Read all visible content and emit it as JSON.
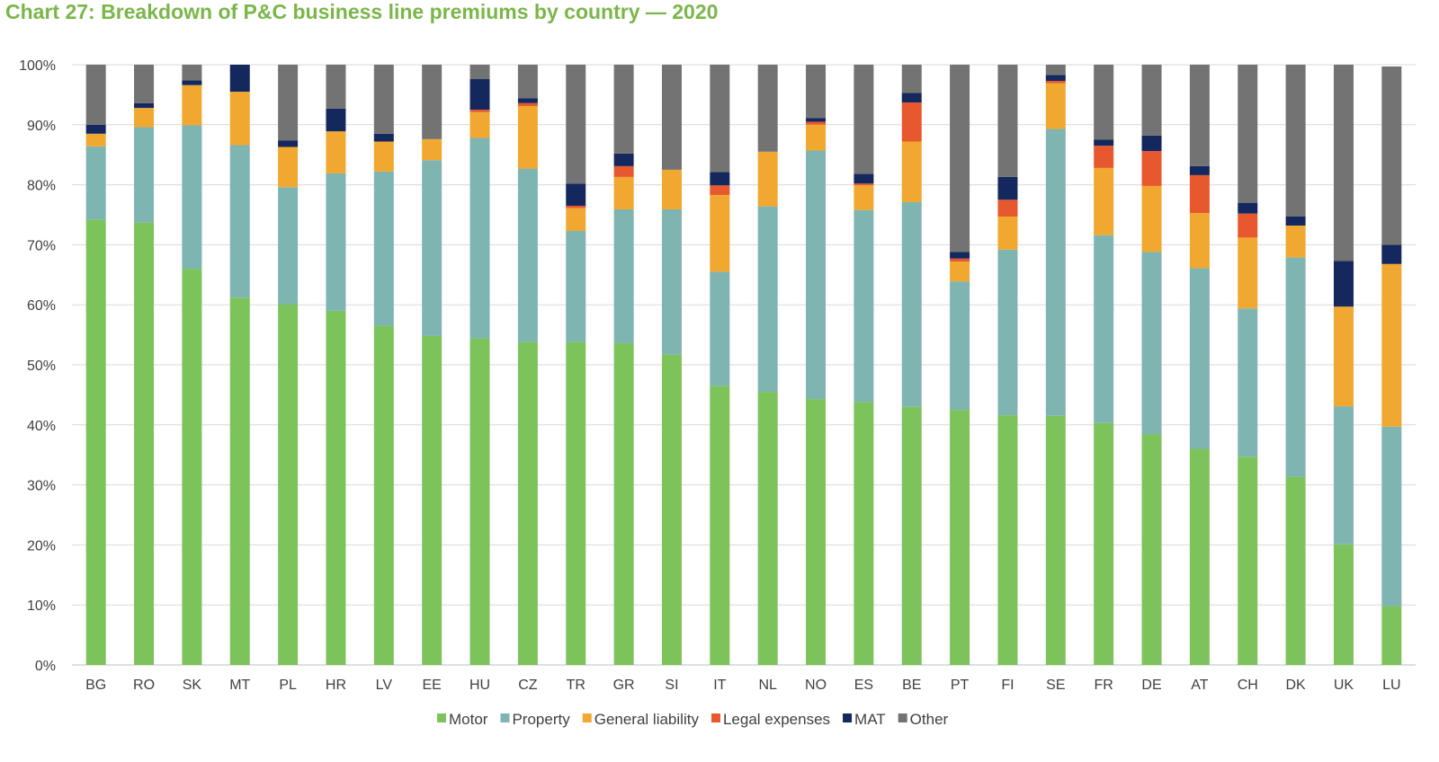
{
  "chart_data": {
    "type": "bar",
    "stacked": true,
    "title": "Chart 27: Breakdown of P&C business line premiums by country — 2020",
    "xlabel": "",
    "ylabel": "",
    "ylim": [
      0,
      100
    ],
    "yticks": [
      "0%",
      "10%",
      "20%",
      "30%",
      "40%",
      "50%",
      "60%",
      "70%",
      "80%",
      "90%",
      "100%"
    ],
    "grid": true,
    "legend_position": "bottom",
    "categories": [
      "BG",
      "RO",
      "SK",
      "MT",
      "PL",
      "HR",
      "LV",
      "EE",
      "HU",
      "CZ",
      "TR",
      "GR",
      "SI",
      "IT",
      "NL",
      "NO",
      "ES",
      "BE",
      "PT",
      "FI",
      "SE",
      "FR",
      "DE",
      "AT",
      "CH",
      "DK",
      "UK",
      "LU"
    ],
    "series": [
      {
        "name": "Motor",
        "color": "#7dc35b",
        "values": [
          74.2,
          73.7,
          66,
          61.2,
          60.1,
          59,
          56.5,
          54.8,
          54.4,
          53.8,
          53.8,
          53.6,
          51.7,
          46.5,
          45.5,
          44.3,
          43.8,
          43,
          42.5,
          41.6,
          41.5,
          40.3,
          38.4,
          36,
          34.7,
          31.3,
          20.1,
          9.8
        ]
      },
      {
        "name": "Property",
        "color": "#7fb5b0",
        "values": [
          12.2,
          15.9,
          23.9,
          25.4,
          19.5,
          22.9,
          25.7,
          29.3,
          33.4,
          28.9,
          18.5,
          22.3,
          24.2,
          19,
          30.9,
          41.4,
          32,
          34.1,
          21.4,
          27.6,
          47.8,
          31.3,
          30.4,
          30.1,
          24.7,
          36.6,
          23,
          29.9
        ]
      },
      {
        "name": "General liability",
        "color": "#f0a830",
        "values": [
          2.1,
          3.2,
          6.7,
          8.9,
          6.7,
          7,
          5,
          3.5,
          4.3,
          10.4,
          3.8,
          5.4,
          6.6,
          12.8,
          9.1,
          4.3,
          4.1,
          10.1,
          3.3,
          5.5,
          7.6,
          11.2,
          11,
          9.2,
          11.8,
          5.3,
          16.6,
          27.1
        ]
      },
      {
        "name": "Legal expenses",
        "color": "#e8582e",
        "values": [
          0,
          0,
          0,
          0,
          0,
          0,
          0,
          0,
          0.4,
          0.5,
          0.4,
          1.8,
          0,
          1.6,
          0,
          0.5,
          0.3,
          6.5,
          0.5,
          2.8,
          0.4,
          3.7,
          5.8,
          6.3,
          4,
          0,
          0,
          0
        ]
      },
      {
        "name": "MAT",
        "color": "#14285e",
        "values": [
          1.5,
          0.8,
          0.8,
          4.5,
          1.1,
          3.8,
          1.3,
          0,
          5.1,
          0.8,
          3.7,
          2.1,
          0,
          2.2,
          0,
          0.6,
          1.6,
          1.6,
          1.1,
          3.8,
          1,
          1,
          2.6,
          1.5,
          1.8,
          1.5,
          7.6,
          3.2
        ]
      },
      {
        "name": "Other",
        "color": "#737373",
        "values": [
          10,
          6.4,
          2.6,
          0,
          12.6,
          7.3,
          11.5,
          12.4,
          2.4,
          5.6,
          19.8,
          14.8,
          17.5,
          17.9,
          14.5,
          8.9,
          18.2,
          4.7,
          31.2,
          18.7,
          1.7,
          12.5,
          11.8,
          16.9,
          23,
          25.3,
          32.7,
          29.7
        ]
      }
    ]
  }
}
